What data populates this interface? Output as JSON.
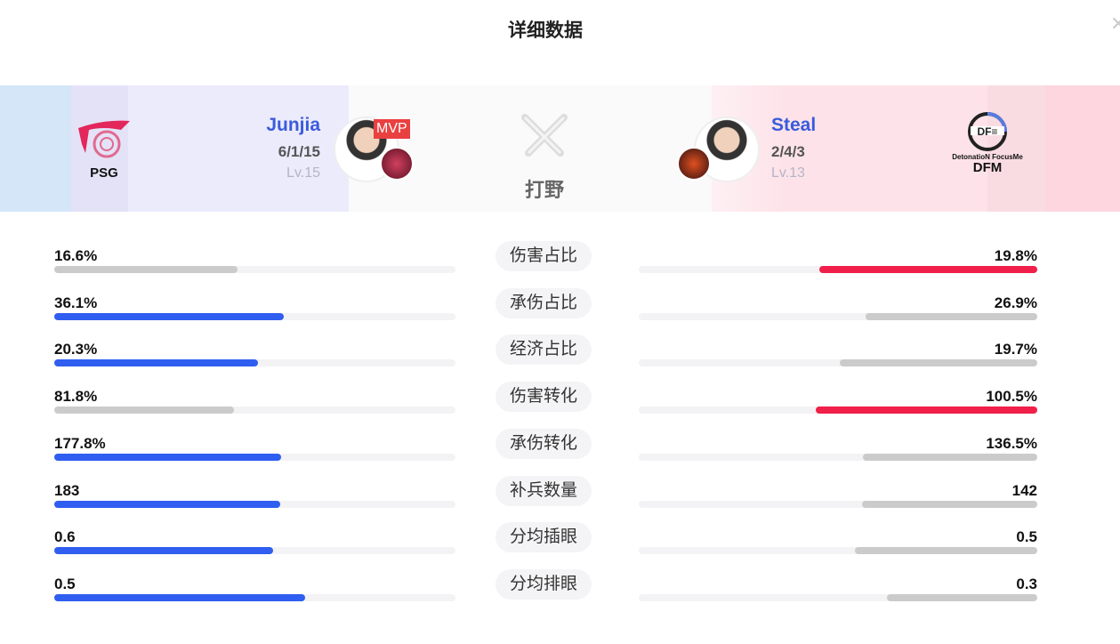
{
  "title": "详细数据",
  "role": "打野",
  "colors": {
    "left_win": "#2f5ef0",
    "right_win": "#f0204a",
    "lose": "#cbcbcb"
  },
  "left": {
    "team": "PSG",
    "player": "Junjia",
    "kda": "6/1/15",
    "level": "Lv.15",
    "badge": "MVP"
  },
  "right": {
    "team": "DFM",
    "team_sub": "DetonatioN FocusMe",
    "player": "Steal",
    "kda": "2/4/3",
    "level": "Lv.13"
  },
  "stats": [
    {
      "label": "伤害占比",
      "left": "16.6%",
      "right": "19.8%",
      "lv": 16.6,
      "rv": 19.8
    },
    {
      "label": "承伤占比",
      "left": "36.1%",
      "right": "26.9%",
      "lv": 36.1,
      "rv": 26.9
    },
    {
      "label": "经济占比",
      "left": "20.3%",
      "right": "19.7%",
      "lv": 20.3,
      "rv": 19.7
    },
    {
      "label": "伤害转化",
      "left": "81.8%",
      "right": "100.5%",
      "lv": 81.8,
      "rv": 100.5
    },
    {
      "label": "承伤转化",
      "left": "177.8%",
      "right": "136.5%",
      "lv": 177.8,
      "rv": 136.5
    },
    {
      "label": "补兵数量",
      "left": "183",
      "right": "142",
      "lv": 183,
      "rv": 142
    },
    {
      "label": "分均插眼",
      "left": "0.6",
      "right": "0.5",
      "lv": 0.6,
      "rv": 0.5
    },
    {
      "label": "分均排眼",
      "left": "0.5",
      "right": "0.3",
      "lv": 0.5,
      "rv": 0.3
    }
  ]
}
